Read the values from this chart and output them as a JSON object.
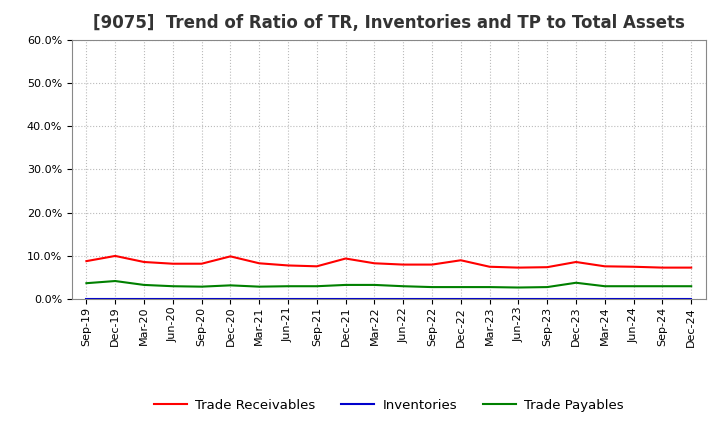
{
  "title": "[9075]  Trend of Ratio of TR, Inventories and TP to Total Assets",
  "x_labels": [
    "Sep-19",
    "Dec-19",
    "Mar-20",
    "Jun-20",
    "Sep-20",
    "Dec-20",
    "Mar-21",
    "Jun-21",
    "Sep-21",
    "Dec-21",
    "Mar-22",
    "Jun-22",
    "Sep-22",
    "Dec-22",
    "Mar-23",
    "Jun-23",
    "Sep-23",
    "Dec-23",
    "Mar-24",
    "Jun-24",
    "Sep-24",
    "Dec-24"
  ],
  "trade_receivables": [
    0.088,
    0.1,
    0.086,
    0.082,
    0.082,
    0.099,
    0.083,
    0.078,
    0.076,
    0.094,
    0.083,
    0.08,
    0.08,
    0.09,
    0.075,
    0.073,
    0.074,
    0.086,
    0.076,
    0.075,
    0.073,
    0.073
  ],
  "inventories": [
    0.001,
    0.001,
    0.001,
    0.001,
    0.001,
    0.001,
    0.001,
    0.001,
    0.001,
    0.001,
    0.001,
    0.001,
    0.001,
    0.001,
    0.001,
    0.001,
    0.001,
    0.001,
    0.001,
    0.001,
    0.001,
    0.001
  ],
  "trade_payables": [
    0.037,
    0.042,
    0.033,
    0.03,
    0.029,
    0.032,
    0.029,
    0.03,
    0.03,
    0.033,
    0.033,
    0.03,
    0.028,
    0.028,
    0.028,
    0.027,
    0.028,
    0.038,
    0.03,
    0.03,
    0.03,
    0.03
  ],
  "tr_color": "#ff0000",
  "inv_color": "#0000cc",
  "tp_color": "#008000",
  "ylim": [
    0.0,
    0.6
  ],
  "yticks": [
    0.0,
    0.1,
    0.2,
    0.3,
    0.4,
    0.5,
    0.6
  ],
  "background_color": "#ffffff",
  "grid_color": "#bbbbbb",
  "title_color": "#333333",
  "legend_labels": [
    "Trade Receivables",
    "Inventories",
    "Trade Payables"
  ],
  "title_fontsize": 12,
  "tick_fontsize": 8,
  "legend_fontsize": 9.5,
  "linewidth": 1.5
}
